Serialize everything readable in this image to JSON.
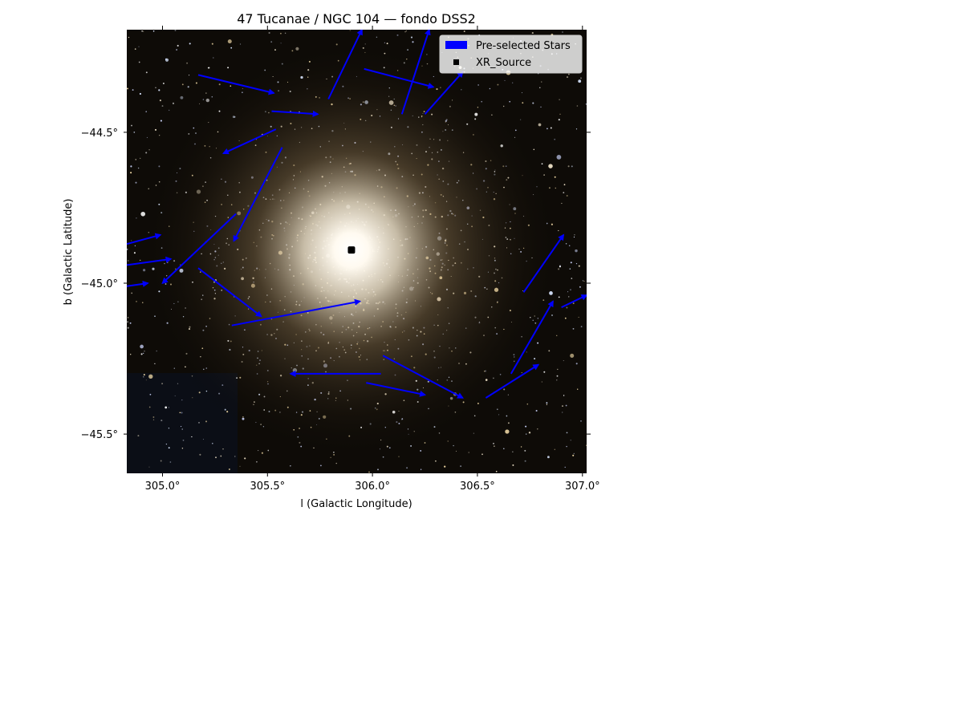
{
  "chart_data": {
    "type": "line",
    "title": "47 Tucanae / NGC 104 — fondo DSS2",
    "xlabel": "l (Galactic Longitude)",
    "ylabel": "b (Galactic Latitude)",
    "xlim": [
      304.83,
      307.02
    ],
    "ylim": [
      -45.63,
      -44.16
    ],
    "x_ticks": [
      305.0,
      305.5,
      306.0,
      306.5,
      307.0
    ],
    "x_tick_labels": [
      "305.0°",
      "305.5°",
      "306.0°",
      "306.5°",
      "307.0°"
    ],
    "y_ticks": [
      -44.5,
      -45.0,
      -45.5
    ],
    "y_tick_labels": [
      "−44.5°",
      "−45.0°",
      "−45.5°"
    ],
    "grid": false,
    "background": "DSS2 color image of the globular cluster",
    "cluster_center": {
      "l": 305.9,
      "b": -44.89
    },
    "legend": {
      "placement": "upper-right",
      "entries": [
        {
          "label": "Pre-selected Stars",
          "color": "#0000ff",
          "marker": "arrow"
        },
        {
          "label": "XR_Source",
          "color": "#000000",
          "marker": "square"
        }
      ]
    },
    "series": [
      {
        "name": "Pre-selected Stars",
        "color": "#0000ff",
        "segments": [
          {
            "x": [
              305.17,
              305.53
            ],
            "y": [
              -44.31,
              -44.37
            ]
          },
          {
            "x": [
              305.52,
              305.74
            ],
            "y": [
              -44.43,
              -44.44
            ]
          },
          {
            "x": [
              305.54,
              305.29
            ],
            "y": [
              -44.49,
              -44.57
            ]
          },
          {
            "x": [
              305.57,
              305.34
            ],
            "y": [
              -44.55,
              -44.86
            ]
          },
          {
            "x": [
              305.79,
              305.95
            ],
            "y": [
              -44.39,
              -44.16
            ]
          },
          {
            "x": [
              305.96,
              306.29
            ],
            "y": [
              -44.29,
              -44.35
            ]
          },
          {
            "x": [
              306.14,
              306.27
            ],
            "y": [
              -44.44,
              -44.16
            ]
          },
          {
            "x": [
              306.25,
              306.43
            ],
            "y": [
              -44.44,
              -44.3
            ]
          },
          {
            "x": [
              305.35,
              305.0
            ],
            "y": [
              -44.77,
              -45.0
            ]
          },
          {
            "x": [
              305.17,
              305.47
            ],
            "y": [
              -44.95,
              -45.11
            ]
          },
          {
            "x": [
              305.33,
              305.94
            ],
            "y": [
              -45.14,
              -45.06
            ]
          },
          {
            "x": [
              304.83,
              304.99
            ],
            "y": [
              -44.87,
              -44.84
            ]
          },
          {
            "x": [
              304.83,
              305.04
            ],
            "y": [
              -44.94,
              -44.92
            ]
          },
          {
            "x": [
              304.83,
              304.93
            ],
            "y": [
              -45.01,
              -45.0
            ]
          },
          {
            "x": [
              306.05,
              306.43
            ],
            "y": [
              -45.24,
              -45.38
            ]
          },
          {
            "x": [
              305.97,
              306.25
            ],
            "y": [
              -45.33,
              -45.37
            ]
          },
          {
            "x": [
              306.04,
              305.61
            ],
            "y": [
              -45.3,
              -45.3
            ]
          },
          {
            "x": [
              306.54,
              306.79
            ],
            "y": [
              -45.38,
              -45.27
            ]
          },
          {
            "x": [
              306.66,
              306.86
            ],
            "y": [
              -45.3,
              -45.06
            ]
          },
          {
            "x": [
              306.72,
              306.91
            ],
            "y": [
              -45.03,
              -44.84
            ]
          },
          {
            "x": [
              306.9,
              307.02
            ],
            "y": [
              -45.08,
              -45.04
            ]
          }
        ]
      },
      {
        "name": "XR_Source",
        "color": "#000000",
        "points": [
          {
            "x": 305.9,
            "y": -44.89
          }
        ]
      }
    ]
  }
}
